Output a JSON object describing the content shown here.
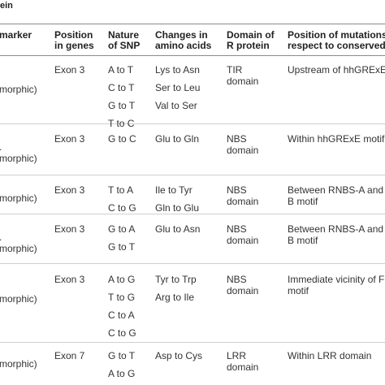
{
  "caption": "ein",
  "headers": [
    {
      "lines": [
        "marker"
      ]
    },
    {
      "lines": [
        "Position",
        "in genes"
      ]
    },
    {
      "lines": [
        "Nature",
        "of SNP"
      ]
    },
    {
      "lines": [
        "Changes in",
        "amino acids"
      ]
    },
    {
      "lines": [
        "Domain of",
        "R protein"
      ]
    },
    {
      "lines": [
        "Position of mutations",
        "respect to conserved m"
      ]
    }
  ],
  "rows": [
    {
      "marker": [
        "",
        "morphic)"
      ],
      "position": "Exon 3",
      "snp": [
        "A to T",
        "C to T",
        "G to T",
        "T to C"
      ],
      "aa": [
        "Lys to Asn",
        "Ser to Leu",
        "Val to Ser"
      ],
      "domain": [
        "TIR",
        "domain"
      ],
      "mutation": [
        "Upstream of hhGRExE"
      ]
    },
    {
      "marker": [
        ".",
        "morphic)"
      ],
      "position": "Exon 3",
      "snp": [
        "G to C"
      ],
      "aa": [
        "Glu to Gln"
      ],
      "domain": [
        "NBS",
        "domain"
      ],
      "mutation": [
        "Within hhGRExE motif"
      ]
    },
    {
      "marker": [
        "morphic)"
      ],
      "position": "Exon 3",
      "snp": [
        "T to A",
        "C to G"
      ],
      "aa": [
        "Ile to Tyr",
        "Gln to Glu"
      ],
      "domain": [
        "NBS",
        "domain"
      ],
      "mutation": [
        "Between RNBS-A and W",
        "B motif"
      ]
    },
    {
      "marker": [
        ".",
        "morphic)"
      ],
      "position": "Exon 3",
      "snp": [
        "G to A",
        "G to T"
      ],
      "aa": [
        "Glu to Asn"
      ],
      "domain": [
        "NBS",
        "domain"
      ],
      "mutation": [
        "Between RNBS-A and W",
        "B motif"
      ]
    },
    {
      "marker": [
        "",
        "morphic)"
      ],
      "position": "Exon 3",
      "snp": [
        "A to G",
        "T to G",
        "C to A",
        "C to G"
      ],
      "aa": [
        "Tyr to Trp",
        "Arg to Ile"
      ],
      "domain": [
        "NBS",
        "domain"
      ],
      "mutation": [
        "Immediate vicinity of F",
        "motif"
      ]
    },
    {
      "marker": [
        "morphic)"
      ],
      "position": "Exon 7",
      "snp": [
        "G to T",
        "A to G"
      ],
      "aa": [
        "Asp to Cys"
      ],
      "domain": [
        "LRR",
        "domain"
      ],
      "mutation": [
        "Within LRR domain"
      ]
    }
  ]
}
